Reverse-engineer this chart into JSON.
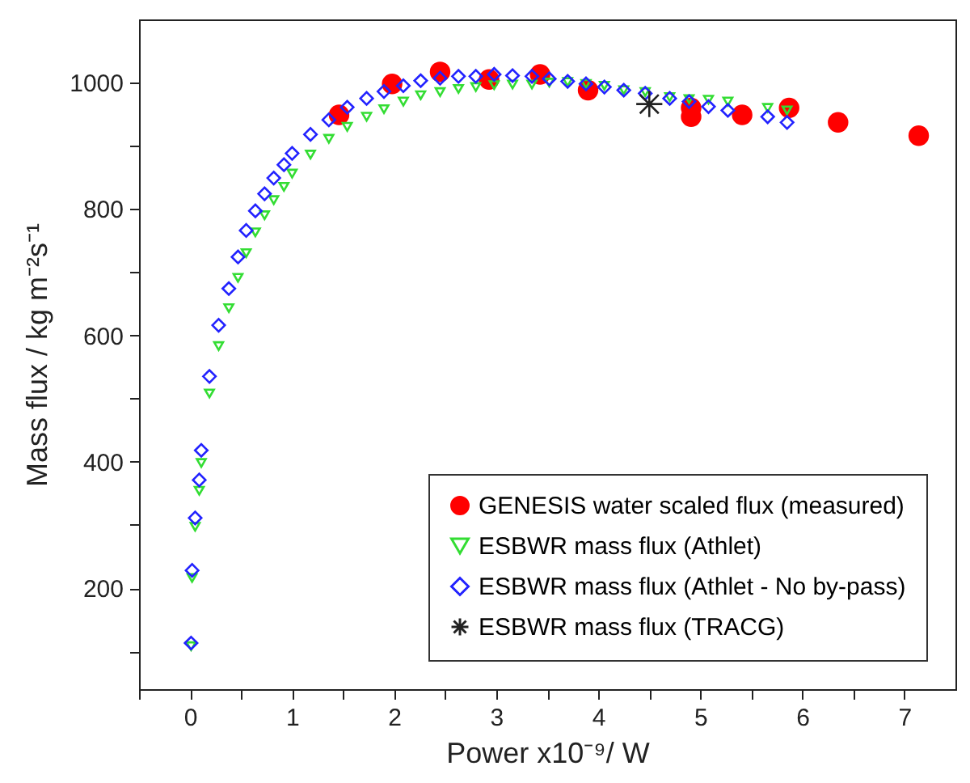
{
  "chart_data": {
    "type": "scatter",
    "xlabel": "Power x10⁻⁹/ W",
    "ylabel": "Mass flux / kg m⁻²s⁻¹",
    "xlim": [
      -0.5,
      7.5
    ],
    "ylim": [
      40,
      1100
    ],
    "xticks": [
      {
        "value": -0.5,
        "label": null
      },
      0,
      {
        "value": 0.5,
        "label": null
      },
      1,
      {
        "value": 1.5,
        "label": null
      },
      2,
      {
        "value": 2.5,
        "label": null
      },
      3,
      {
        "value": 3.5,
        "label": null
      },
      4,
      {
        "value": 4.5,
        "label": null
      },
      5,
      {
        "value": 5.5,
        "label": null
      },
      6,
      {
        "value": 6.5,
        "label": null
      },
      7
    ],
    "yticks": [
      {
        "value": 100,
        "label": null
      },
      200,
      {
        "value": 300,
        "label": null
      },
      400,
      {
        "value": 500,
        "label": null
      },
      600,
      {
        "value": 700,
        "label": null
      },
      800,
      {
        "value": 900,
        "label": null
      },
      1000
    ],
    "grid": false,
    "legend": "bottom right",
    "series": [
      {
        "name": "GENESIS water scaled flux (measured)",
        "color": "#ff0000",
        "marker": "circle",
        "x": [
          1.46,
          1.98,
          2.45,
          2.93,
          3.43,
          3.9,
          4.91,
          4.91,
          5.41,
          5.87,
          6.35,
          7.14
        ],
        "values": [
          949,
          998,
          1017,
          1005,
          1013,
          988,
          960,
          946,
          949,
          960,
          937,
          916
        ]
      },
      {
        "name": "ESBWR mass flux (Athlet)",
        "color": "#33dd33",
        "marker": "triangle",
        "x": [
          0.01,
          0.02,
          0.05,
          0.09,
          0.11,
          0.19,
          0.28,
          0.38,
          0.47,
          0.55,
          0.64,
          0.73,
          0.82,
          0.92,
          1.0,
          1.18,
          1.36,
          1.54,
          1.73,
          1.9,
          2.09,
          2.26,
          2.45,
          2.63,
          2.8,
          2.98,
          3.16,
          3.35,
          3.52,
          3.7,
          3.88,
          4.06,
          4.25,
          4.46,
          4.7,
          4.89,
          5.08,
          5.27,
          5.66,
          5.85
        ],
        "values": [
          108,
          216,
          297,
          354,
          398,
          508,
          583,
          643,
          691,
          730,
          763,
          790,
          814,
          835,
          856,
          886,
          911,
          930,
          946,
          958,
          970,
          980,
          985,
          990,
          993,
          996,
          997,
          997,
          1000,
          1001,
          998,
          995,
          988,
          985,
          977,
          974,
          973,
          970,
          960,
          956
        ]
      },
      {
        "name": "ESBWR mass flux (Athlet - No by-pass)",
        "color": "#2222ff",
        "marker": "diamond",
        "x": [
          0.01,
          0.02,
          0.05,
          0.09,
          0.11,
          0.19,
          0.28,
          0.38,
          0.47,
          0.55,
          0.64,
          0.73,
          0.82,
          0.92,
          1.0,
          1.18,
          1.36,
          1.54,
          1.73,
          1.9,
          2.09,
          2.26,
          2.45,
          2.63,
          2.8,
          2.98,
          3.16,
          3.35,
          3.52,
          3.7,
          3.88,
          4.06,
          4.25,
          4.46,
          4.7,
          4.89,
          5.08,
          5.27,
          5.66,
          5.85
        ],
        "values": [
          113,
          228,
          311,
          371,
          418,
          535,
          616,
          674,
          724,
          766,
          797,
          824,
          849,
          870,
          888,
          918,
          941,
          961,
          975,
          986,
          995,
          1003,
          1007,
          1010,
          1010,
          1013,
          1011,
          1010,
          1006,
          1002,
          998,
          993,
          988,
          983,
          975,
          970,
          962,
          956,
          946,
          937
        ]
      },
      {
        "name": "ESBWR mass flux (TRACG)",
        "color": "#222222",
        "marker": "cross",
        "x": [
          4.5
        ],
        "values": [
          966
        ]
      }
    ]
  }
}
